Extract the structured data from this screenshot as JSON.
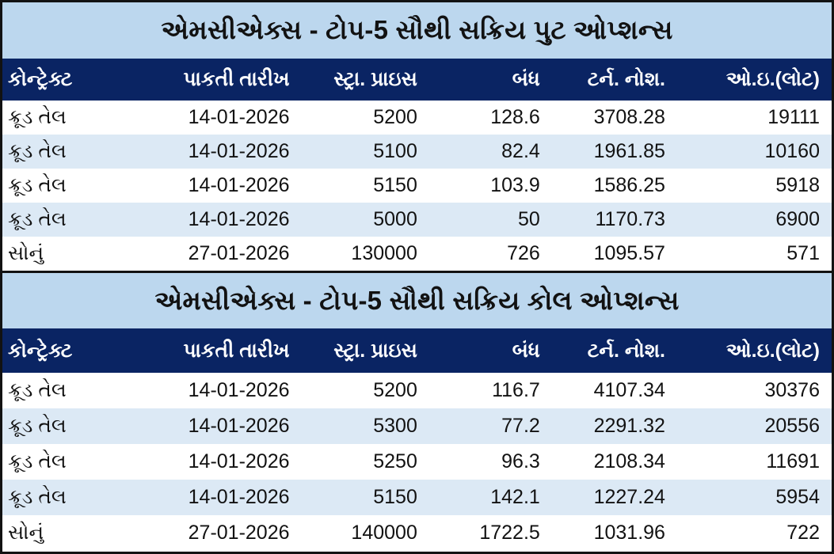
{
  "colors": {
    "outer_border": "#121212",
    "title_bg": "#BCD7EE",
    "title_text": "#121212",
    "header_bg": "#0A2463",
    "header_text": "#FFFFFF",
    "row_bg": "#FFFFFF",
    "row_alt_bg": "#DCE9F5",
    "row_text": "#121212"
  },
  "chart_data": [
    {
      "type": "table",
      "title": "એમસીએક્સ - ટોપ-5 સૌથી સક્રિય પુટ ઓપ્શન્સ",
      "columns": [
        "કોન્ટ્રેક્ટ",
        "પાકતી તારીખ",
        "સ્ટ્રા. પ્રાઇસ",
        "બંધ",
        "ટર્ન. નોશ.",
        "ઓ.ઇ.(લોટ)"
      ],
      "rows": [
        [
          "ક્રૂડ તેલ",
          "14-01-2026",
          "5200",
          "128.6",
          "3708.28",
          "19111"
        ],
        [
          "ક્રૂડ તેલ",
          "14-01-2026",
          "5100",
          "82.4",
          "1961.85",
          "10160"
        ],
        [
          "ક્રૂડ તેલ",
          "14-01-2026",
          "5150",
          "103.9",
          "1586.25",
          "5918"
        ],
        [
          "ક્રૂડ તેલ",
          "14-01-2026",
          "5000",
          "50",
          "1170.73",
          "6900"
        ],
        [
          "સોનું",
          "27-01-2026",
          "130000",
          "726",
          "1095.57",
          "571"
        ]
      ]
    },
    {
      "type": "table",
      "title": "એમસીએક્સ - ટોપ-5 સૌથી સક્રિય કોલ ઓપ્શન્સ",
      "columns": [
        "કોન્ટ્રેક્ટ",
        "પાકતી તારીખ",
        "સ્ટ્રા. પ્રાઇસ",
        "બંધ",
        "ટર્ન. નોશ.",
        "ઓ.ઇ.(લોટ)"
      ],
      "rows": [
        [
          "ક્રૂડ તેલ",
          "14-01-2026",
          "5200",
          "116.7",
          "4107.34",
          "30376"
        ],
        [
          "ક્રૂડ તેલ",
          "14-01-2026",
          "5300",
          "77.2",
          "2291.32",
          "20556"
        ],
        [
          "ક્રૂડ તેલ",
          "14-01-2026",
          "5250",
          "96.3",
          "2108.34",
          "11691"
        ],
        [
          "ક્રૂડ તેલ",
          "14-01-2026",
          "5150",
          "142.1",
          "1227.24",
          "5954"
        ],
        [
          "સોનું",
          "27-01-2026",
          "140000",
          "1722.5",
          "1031.96",
          "722"
        ]
      ]
    }
  ]
}
